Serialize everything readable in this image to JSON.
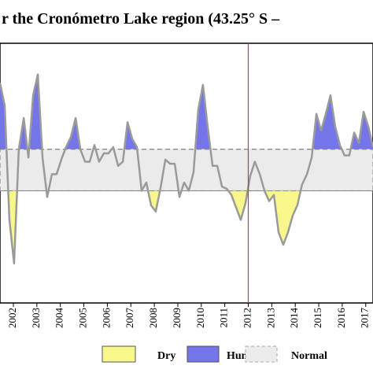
{
  "chart_data": {
    "type": "line",
    "title": "r  the Cronómetro Lake region (43.25° S –",
    "x": [
      2001.43,
      2001.63,
      2001.83,
      2002.03,
      2002.23,
      2002.44,
      2002.64,
      2002.84,
      2003.04,
      2003.24,
      2003.44,
      2003.64,
      2003.84,
      2004.04,
      2004.24,
      2004.45,
      2004.65,
      2004.85,
      2005.05,
      2005.25,
      2005.45,
      2005.65,
      2005.85,
      2006.05,
      2006.25,
      2006.46,
      2006.66,
      2006.86,
      2007.06,
      2007.26,
      2007.46,
      2007.66,
      2007.86,
      2008.06,
      2008.26,
      2008.47,
      2008.67,
      2008.87,
      2009.07,
      2009.27,
      2009.47,
      2009.67,
      2009.87,
      2010.07,
      2010.27,
      2010.48,
      2010.68,
      2010.88,
      2011.08,
      2011.28,
      2011.48,
      2011.68,
      2011.88,
      2012.08,
      2012.28,
      2012.49,
      2012.69,
      2012.89,
      2013.09,
      2013.29,
      2013.49,
      2013.69,
      2013.89,
      2014.09,
      2014.29,
      2014.5,
      2014.7,
      2014.9,
      2015.1,
      2015.3,
      2015.5,
      2015.7,
      2015.9,
      2016.1,
      2016.3,
      2016.51,
      2016.71,
      2016.91,
      2017.11,
      2017.31
    ],
    "series": [
      {
        "color": "#9a9a9a",
        "values": [
          4.2,
          3.1,
          -2.4,
          -4.5,
          1.0,
          2.5,
          0.6,
          3.6,
          4.6,
          0.6,
          -1.3,
          -0.2,
          -0.2,
          0.5,
          1.1,
          1.6,
          2.5,
          1.0,
          0.4,
          0.4,
          1.2,
          0.4,
          0.8,
          0.8,
          1.1,
          0.2,
          0.4,
          2.3,
          1.5,
          1.1,
          -1.0,
          -0.6,
          -1.7,
          -2.0,
          -0.9,
          0.5,
          0.3,
          0.3,
          -1.3,
          -0.6,
          -1.0,
          -0.1,
          2.9,
          4.1,
          2.1,
          0.2,
          0.2,
          -0.8,
          -0.9,
          -1.2,
          -1.8,
          -2.4,
          -1.6,
          -0.3,
          0.4,
          -0.2,
          -1.0,
          -1.5,
          -1.2,
          -3.0,
          -3.6,
          -3.0,
          -2.2,
          -1.7,
          -0.7,
          -0.2,
          0.6,
          2.7,
          1.9,
          2.7,
          3.6,
          2.1,
          1.2,
          0.7,
          0.7,
          1.8,
          1.3,
          2.8,
          2.1,
          1.1
        ]
      }
    ],
    "xlim": [
      2001.43,
      2017.31
    ],
    "xticks": [
      2002,
      2003,
      2004,
      2005,
      2006,
      2007,
      2008,
      2009,
      2010,
      2011,
      2012,
      2013,
      2014,
      2015,
      2016,
      2017
    ],
    "ylim": [
      -6.4,
      6.1
    ],
    "normal_band": [
      -1,
      1
    ],
    "vline": 2012,
    "vline_color": "#e03030",
    "legend": [
      {
        "name": "Dry",
        "color": "#f7f78c"
      },
      {
        "name": "Humid",
        "color": "#7575ea"
      },
      {
        "name": "Normal",
        "color": "#ebebeb"
      }
    ]
  }
}
